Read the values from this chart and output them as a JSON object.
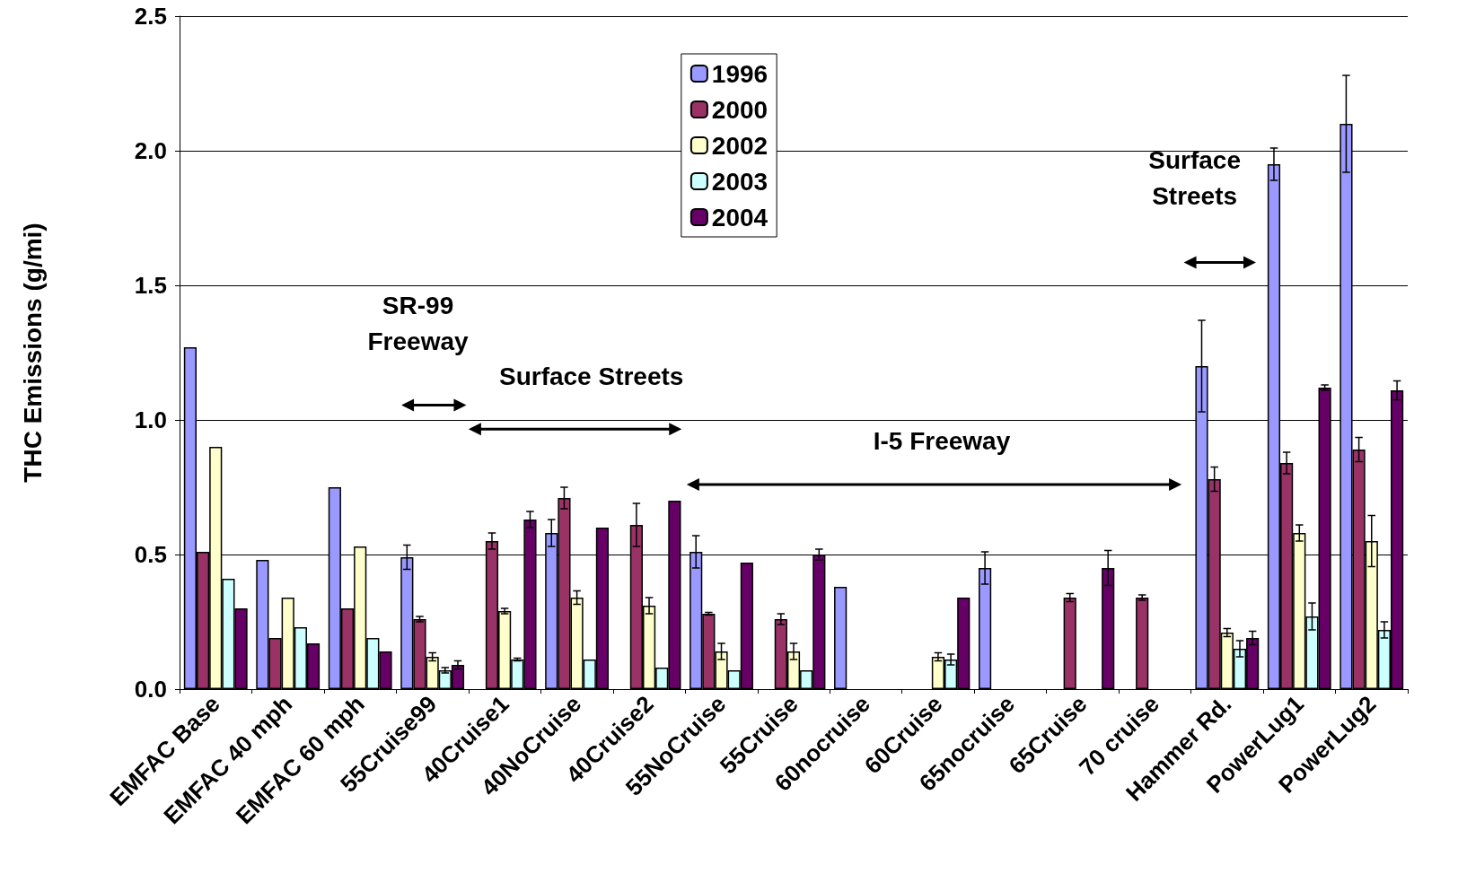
{
  "chart_data": {
    "type": "bar",
    "ylabel": "THC Emissions (g/mi)",
    "categories": [
      "EMFAC Base",
      "EMFAC 40 mph",
      "EMFAC 60 mph",
      "55Cruise99",
      "40Cruise1",
      "40NoCruise",
      "40Cruise2",
      "55NoCruise",
      "55Cruise",
      "60nocruise",
      "60Cruise",
      "65nocruise",
      "65Cruise",
      "70 cruise",
      "Hammer Rd.",
      "PowerLug1",
      "PowerLug2"
    ],
    "series": [
      {
        "name": "1996",
        "color": "#9999ff",
        "values": [
          1.27,
          0.48,
          0.75,
          0.49,
          null,
          0.58,
          null,
          0.51,
          null,
          0.38,
          null,
          0.45,
          null,
          null,
          1.2,
          1.95,
          2.1
        ],
        "errors": [
          null,
          null,
          null,
          0.045,
          null,
          0.05,
          null,
          0.06,
          null,
          null,
          null,
          0.06,
          null,
          null,
          0.17,
          0.06,
          0.18
        ]
      },
      {
        "name": "2000",
        "color": "#993366",
        "values": [
          0.51,
          0.19,
          0.3,
          0.26,
          0.55,
          0.71,
          0.61,
          0.28,
          0.26,
          null,
          null,
          null,
          0.34,
          0.34,
          0.78,
          0.84,
          0.89
        ],
        "errors": [
          null,
          null,
          null,
          0.01,
          0.03,
          0.04,
          0.08,
          0.005,
          0.02,
          null,
          null,
          null,
          0.015,
          0.01,
          0.045,
          0.04,
          0.045
        ]
      },
      {
        "name": "2002",
        "color": "#ffffcc",
        "values": [
          0.9,
          0.34,
          0.53,
          0.12,
          0.29,
          0.34,
          0.31,
          0.14,
          0.14,
          null,
          0.12,
          null,
          null,
          null,
          0.21,
          0.58,
          0.55
        ],
        "errors": [
          null,
          null,
          null,
          0.015,
          0.01,
          0.025,
          0.03,
          0.03,
          0.03,
          null,
          0.015,
          null,
          null,
          null,
          0.015,
          0.03,
          0.095
        ]
      },
      {
        "name": "2003",
        "color": "#ccffff",
        "values": [
          0.41,
          0.23,
          0.19,
          0.07,
          0.11,
          0.11,
          0.08,
          0.07,
          0.07,
          null,
          0.11,
          null,
          null,
          null,
          0.15,
          0.27,
          0.22
        ],
        "errors": [
          null,
          null,
          null,
          0.01,
          0.005,
          null,
          null,
          null,
          null,
          null,
          0.02,
          null,
          null,
          null,
          0.03,
          0.05,
          0.03
        ]
      },
      {
        "name": "2004",
        "color": "#660066",
        "values": [
          0.3,
          0.17,
          0.14,
          0.09,
          0.63,
          0.6,
          0.7,
          0.47,
          0.5,
          null,
          0.34,
          null,
          0.45,
          null,
          0.19,
          1.12,
          1.11
        ],
        "errors": [
          null,
          null,
          null,
          0.015,
          0.03,
          null,
          null,
          null,
          0.02,
          null,
          null,
          null,
          0.065,
          null,
          0.025,
          0.01,
          0.035
        ]
      }
    ],
    "ylim": [
      0,
      2.5
    ],
    "yticks": [
      {
        "value": 0,
        "label": "0.0"
      },
      {
        "value": 0.5,
        "label": "0.5"
      },
      {
        "value": 1,
        "label": "1.0"
      },
      {
        "value": 1.5,
        "label": "1.5"
      },
      {
        "value": 2,
        "label": "2.0"
      },
      {
        "value": 2.5,
        "label": "2.5"
      }
    ],
    "grid": "y",
    "legend": "top",
    "annotations": [
      "SR-99\nFreeway",
      "Surface Streets",
      "I-5 Freeway",
      "Surface\nStreets"
    ]
  }
}
